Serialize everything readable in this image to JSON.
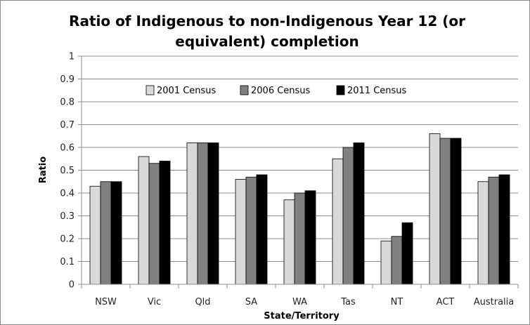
{
  "chart_data": {
    "type": "bar",
    "title": "Ratio of Indigenous to non-Indigenous Year 12 (or equivalent) completion",
    "xlabel": "State/Territory",
    "ylabel": "Ratio",
    "ylim": [
      0,
      1
    ],
    "yticks": [
      "0",
      "0.1",
      "0.2",
      "0.3",
      "0.4",
      "0.5",
      "0.6",
      "0.7",
      "0.8",
      "0.9",
      "1"
    ],
    "grid": true,
    "legend_position": "top",
    "categories": [
      "NSW",
      "Vic",
      "Qld",
      "SA",
      "WA",
      "Tas",
      "NT",
      "ACT",
      "Australia"
    ],
    "series": [
      {
        "name": "2001 Census",
        "color": "#d9d9d9",
        "values": [
          0.43,
          0.56,
          0.62,
          0.46,
          0.37,
          0.55,
          0.19,
          0.66,
          0.45
        ]
      },
      {
        "name": "2006 Census",
        "color": "#808080",
        "values": [
          0.45,
          0.53,
          0.62,
          0.47,
          0.4,
          0.6,
          0.21,
          0.64,
          0.47
        ]
      },
      {
        "name": "2011 Census",
        "color": "#000000",
        "values": [
          0.45,
          0.54,
          0.62,
          0.48,
          0.41,
          0.62,
          0.27,
          0.64,
          0.48
        ]
      }
    ]
  }
}
